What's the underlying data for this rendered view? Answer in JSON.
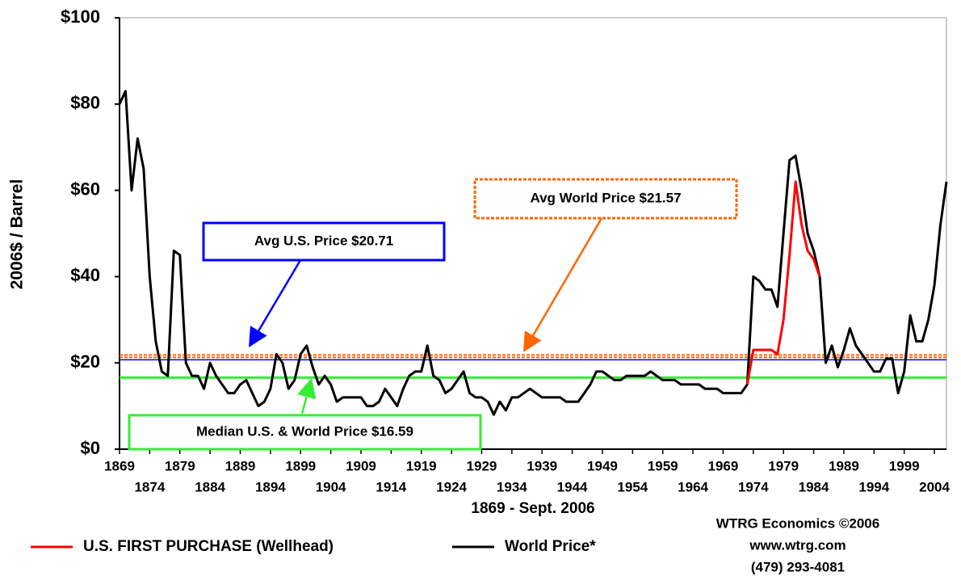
{
  "chart_data": {
    "type": "line",
    "y_label": "2006$ / Barrel",
    "x_label": "1869 - Sept. 2006",
    "xlim": [
      1869,
      2006
    ],
    "ylim": [
      0,
      100
    ],
    "xticks": [
      1869,
      1874,
      1879,
      1884,
      1889,
      1894,
      1899,
      1904,
      1909,
      1914,
      1919,
      1924,
      1929,
      1934,
      1939,
      1944,
      1949,
      1954,
      1959,
      1964,
      1969,
      1974,
      1979,
      1984,
      1989,
      1994,
      1999,
      2004
    ],
    "yticks": [
      {
        "value": 0,
        "label": "$0"
      },
      {
        "value": 20,
        "label": "$20"
      },
      {
        "value": 40,
        "label": "$40"
      },
      {
        "value": 60,
        "label": "$60"
      },
      {
        "value": 80,
        "label": "$80"
      },
      {
        "value": 100,
        "label": "$100"
      }
    ],
    "series": [
      {
        "name": "U.S. FIRST PURCHASE (Wellhead)",
        "color": "#ff0000",
        "x": [
          1973,
          1974,
          1975,
          1976,
          1977,
          1978,
          1979,
          1980,
          1981,
          1982,
          1983,
          1984,
          1985
        ],
        "values": [
          15,
          23,
          23,
          23,
          23,
          22,
          30,
          45,
          62,
          52,
          46,
          44,
          40
        ]
      },
      {
        "name": "World Price*",
        "color": "#000000",
        "x": [
          1869,
          1870,
          1871,
          1872,
          1873,
          1874,
          1875,
          1876,
          1877,
          1878,
          1879,
          1880,
          1881,
          1882,
          1883,
          1884,
          1885,
          1886,
          1887,
          1888,
          1889,
          1890,
          1891,
          1892,
          1893,
          1894,
          1895,
          1896,
          1897,
          1898,
          1899,
          1900,
          1901,
          1902,
          1903,
          1904,
          1905,
          1906,
          1907,
          1908,
          1909,
          1910,
          1911,
          1912,
          1913,
          1914,
          1915,
          1916,
          1917,
          1918,
          1919,
          1920,
          1921,
          1922,
          1923,
          1924,
          1925,
          1926,
          1927,
          1928,
          1929,
          1930,
          1931,
          1932,
          1933,
          1934,
          1935,
          1936,
          1937,
          1938,
          1939,
          1940,
          1941,
          1942,
          1943,
          1944,
          1945,
          1946,
          1947,
          1948,
          1949,
          1950,
          1951,
          1952,
          1953,
          1954,
          1955,
          1956,
          1957,
          1958,
          1959,
          1960,
          1961,
          1962,
          1963,
          1964,
          1965,
          1966,
          1967,
          1968,
          1969,
          1970,
          1971,
          1972,
          1973,
          1974,
          1975,
          1976,
          1977,
          1978,
          1979,
          1980,
          1981,
          1982,
          1983,
          1984,
          1985,
          1986,
          1987,
          1988,
          1989,
          1990,
          1991,
          1992,
          1993,
          1994,
          1995,
          1996,
          1997,
          1998,
          1999,
          2000,
          2001,
          2002,
          2003,
          2004,
          2005,
          2006
        ],
        "values": [
          80,
          83,
          60,
          72,
          65,
          40,
          25,
          18,
          17,
          46,
          45,
          20,
          17,
          17,
          14,
          20,
          17,
          15,
          13,
          13,
          15,
          16,
          13,
          10,
          11,
          14,
          22,
          20,
          14,
          16,
          22,
          24,
          19,
          15,
          17,
          15,
          11,
          12,
          12,
          12,
          12,
          10,
          10,
          11,
          14,
          12,
          10,
          14,
          17,
          18,
          18,
          24,
          17,
          16,
          13,
          14,
          16,
          18,
          13,
          12,
          12,
          11,
          8,
          11,
          9,
          12,
          12,
          13,
          14,
          13,
          12,
          12,
          12,
          12,
          11,
          11,
          11,
          13,
          15,
          18,
          18,
          17,
          16,
          16,
          17,
          17,
          17,
          17,
          18,
          17,
          16,
          16,
          16,
          15,
          15,
          15,
          15,
          14,
          14,
          14,
          13,
          13,
          13,
          13,
          15,
          40,
          39,
          37,
          37,
          33,
          50,
          67,
          68,
          60,
          50,
          46,
          40,
          20,
          24,
          19,
          23,
          28,
          24,
          22,
          20,
          18,
          18,
          21,
          21,
          13,
          18,
          31,
          25,
          25,
          30,
          38,
          52,
          62
        ]
      }
    ],
    "reference_lines": [
      {
        "label": "Avg U.S. Price  $20.71",
        "value": 20.71,
        "color": "#0000ff"
      },
      {
        "label": "Avg  World Price  $21.57",
        "value": 21.57,
        "color": "#ff6600"
      },
      {
        "label": "Median U.S. & World Price $16.59",
        "value": 16.59,
        "color": "#33ee33"
      }
    ],
    "credits": [
      "WTRG Economics  ©2006",
      "www.wtrg.com",
      "(479) 293-4081"
    ]
  }
}
